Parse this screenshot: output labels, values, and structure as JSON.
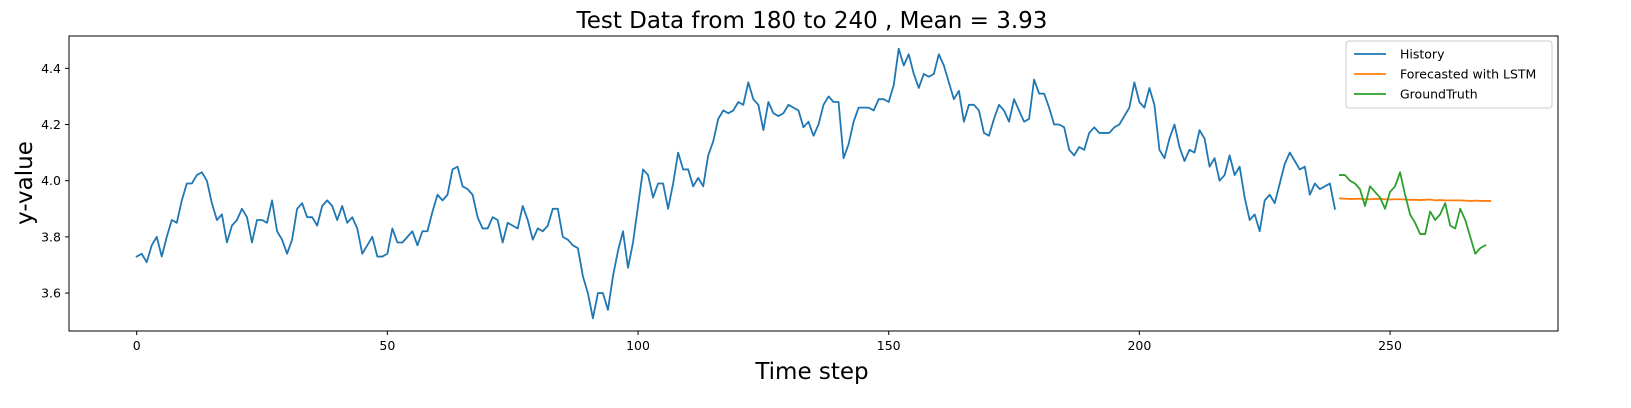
{
  "chart_data": {
    "type": "line",
    "title": "Test Data from 180 to 240 , Mean = 3.93",
    "xlabel": "Time step",
    "ylabel": "y-value",
    "xlim": [
      -13.5,
      283.5
    ],
    "ylim": [
      3.465,
      4.515
    ],
    "xticks": [
      0,
      50,
      100,
      150,
      200,
      250
    ],
    "yticks": [
      3.6,
      3.8,
      4.0,
      4.2,
      4.4
    ],
    "ytick_labels": [
      "3.6",
      "3.8",
      "4.0",
      "4.2",
      "4.4"
    ],
    "grid": false,
    "legend_position": "top-right",
    "series": [
      {
        "name": "History",
        "color": "#1f77b4",
        "x_start": 0,
        "values": [
          3.73,
          3.74,
          3.71,
          3.77,
          3.8,
          3.73,
          3.8,
          3.86,
          3.85,
          3.93,
          3.99,
          3.99,
          4.02,
          4.03,
          4.0,
          3.92,
          3.86,
          3.88,
          3.78,
          3.84,
          3.86,
          3.9,
          3.87,
          3.78,
          3.86,
          3.86,
          3.85,
          3.93,
          3.82,
          3.79,
          3.74,
          3.79,
          3.9,
          3.92,
          3.87,
          3.87,
          3.84,
          3.91,
          3.93,
          3.91,
          3.86,
          3.91,
          3.85,
          3.87,
          3.83,
          3.74,
          3.77,
          3.8,
          3.73,
          3.73,
          3.74,
          3.83,
          3.78,
          3.78,
          3.8,
          3.82,
          3.77,
          3.82,
          3.82,
          3.89,
          3.95,
          3.93,
          3.95,
          4.04,
          4.05,
          3.98,
          3.97,
          3.95,
          3.87,
          3.83,
          3.83,
          3.87,
          3.86,
          3.78,
          3.85,
          3.84,
          3.83,
          3.91,
          3.86,
          3.79,
          3.83,
          3.82,
          3.84,
          3.9,
          3.9,
          3.8,
          3.79,
          3.77,
          3.76,
          3.66,
          3.6,
          3.51,
          3.6,
          3.6,
          3.54,
          3.66,
          3.75,
          3.82,
          3.69,
          3.78,
          3.91,
          4.04,
          4.02,
          3.94,
          3.99,
          3.99,
          3.9,
          3.99,
          4.1,
          4.04,
          4.04,
          3.98,
          4.01,
          3.98,
          4.09,
          4.14,
          4.22,
          4.25,
          4.24,
          4.25,
          4.28,
          4.27,
          4.35,
          4.29,
          4.27,
          4.18,
          4.28,
          4.24,
          4.23,
          4.24,
          4.27,
          4.26,
          4.25,
          4.19,
          4.21,
          4.16,
          4.2,
          4.27,
          4.3,
          4.28,
          4.28,
          4.08,
          4.13,
          4.21,
          4.26,
          4.26,
          4.26,
          4.25,
          4.29,
          4.29,
          4.28,
          4.34,
          4.47,
          4.41,
          4.45,
          4.38,
          4.33,
          4.38,
          4.37,
          4.38,
          4.45,
          4.41,
          4.35,
          4.29,
          4.32,
          4.21,
          4.27,
          4.27,
          4.25,
          4.17,
          4.16,
          4.22,
          4.27,
          4.25,
          4.21,
          4.29,
          4.25,
          4.21,
          4.22,
          4.36,
          4.31,
          4.31,
          4.26,
          4.2,
          4.2,
          4.19,
          4.11,
          4.09,
          4.12,
          4.11,
          4.17,
          4.19,
          4.17,
          4.17,
          4.17,
          4.19,
          4.2,
          4.23,
          4.26,
          4.35,
          4.28,
          4.26,
          4.33,
          4.27,
          4.11,
          4.08,
          4.15,
          4.2,
          4.12,
          4.07,
          4.11,
          4.1,
          4.18,
          4.15,
          4.05,
          4.08,
          4.0,
          4.02,
          4.09,
          4.02,
          4.05,
          3.94,
          3.86,
          3.88,
          3.82,
          3.93,
          3.95,
          3.92,
          3.99,
          4.06,
          4.1,
          4.07,
          4.04,
          4.05,
          3.95,
          3.99,
          3.97,
          3.98,
          3.99,
          3.9
        ]
      },
      {
        "name": "Forecasted with LSTM",
        "color": "#ff7f0e",
        "x_start": 240,
        "values": [
          3.937,
          3.936,
          3.935,
          3.935,
          3.936,
          3.934,
          3.934,
          3.935,
          3.935,
          3.934,
          3.933,
          3.934,
          3.934,
          3.933,
          3.932,
          3.932,
          3.931,
          3.932,
          3.933,
          3.93,
          3.931,
          3.93,
          3.93,
          3.93,
          3.93,
          3.929,
          3.928,
          3.929,
          3.928,
          3.928,
          3.928
        ]
      },
      {
        "name": "GroundTruth",
        "color": "#2ca02c",
        "x_start": 240,
        "values": [
          4.02,
          4.02,
          4.0,
          3.99,
          3.97,
          3.91,
          3.98,
          3.96,
          3.94,
          3.9,
          3.96,
          3.98,
          4.03,
          3.95,
          3.88,
          3.85,
          3.81,
          3.81,
          3.89,
          3.86,
          3.88,
          3.92,
          3.84,
          3.83,
          3.9,
          3.86,
          3.8,
          3.74,
          3.76,
          3.77
        ]
      }
    ]
  }
}
